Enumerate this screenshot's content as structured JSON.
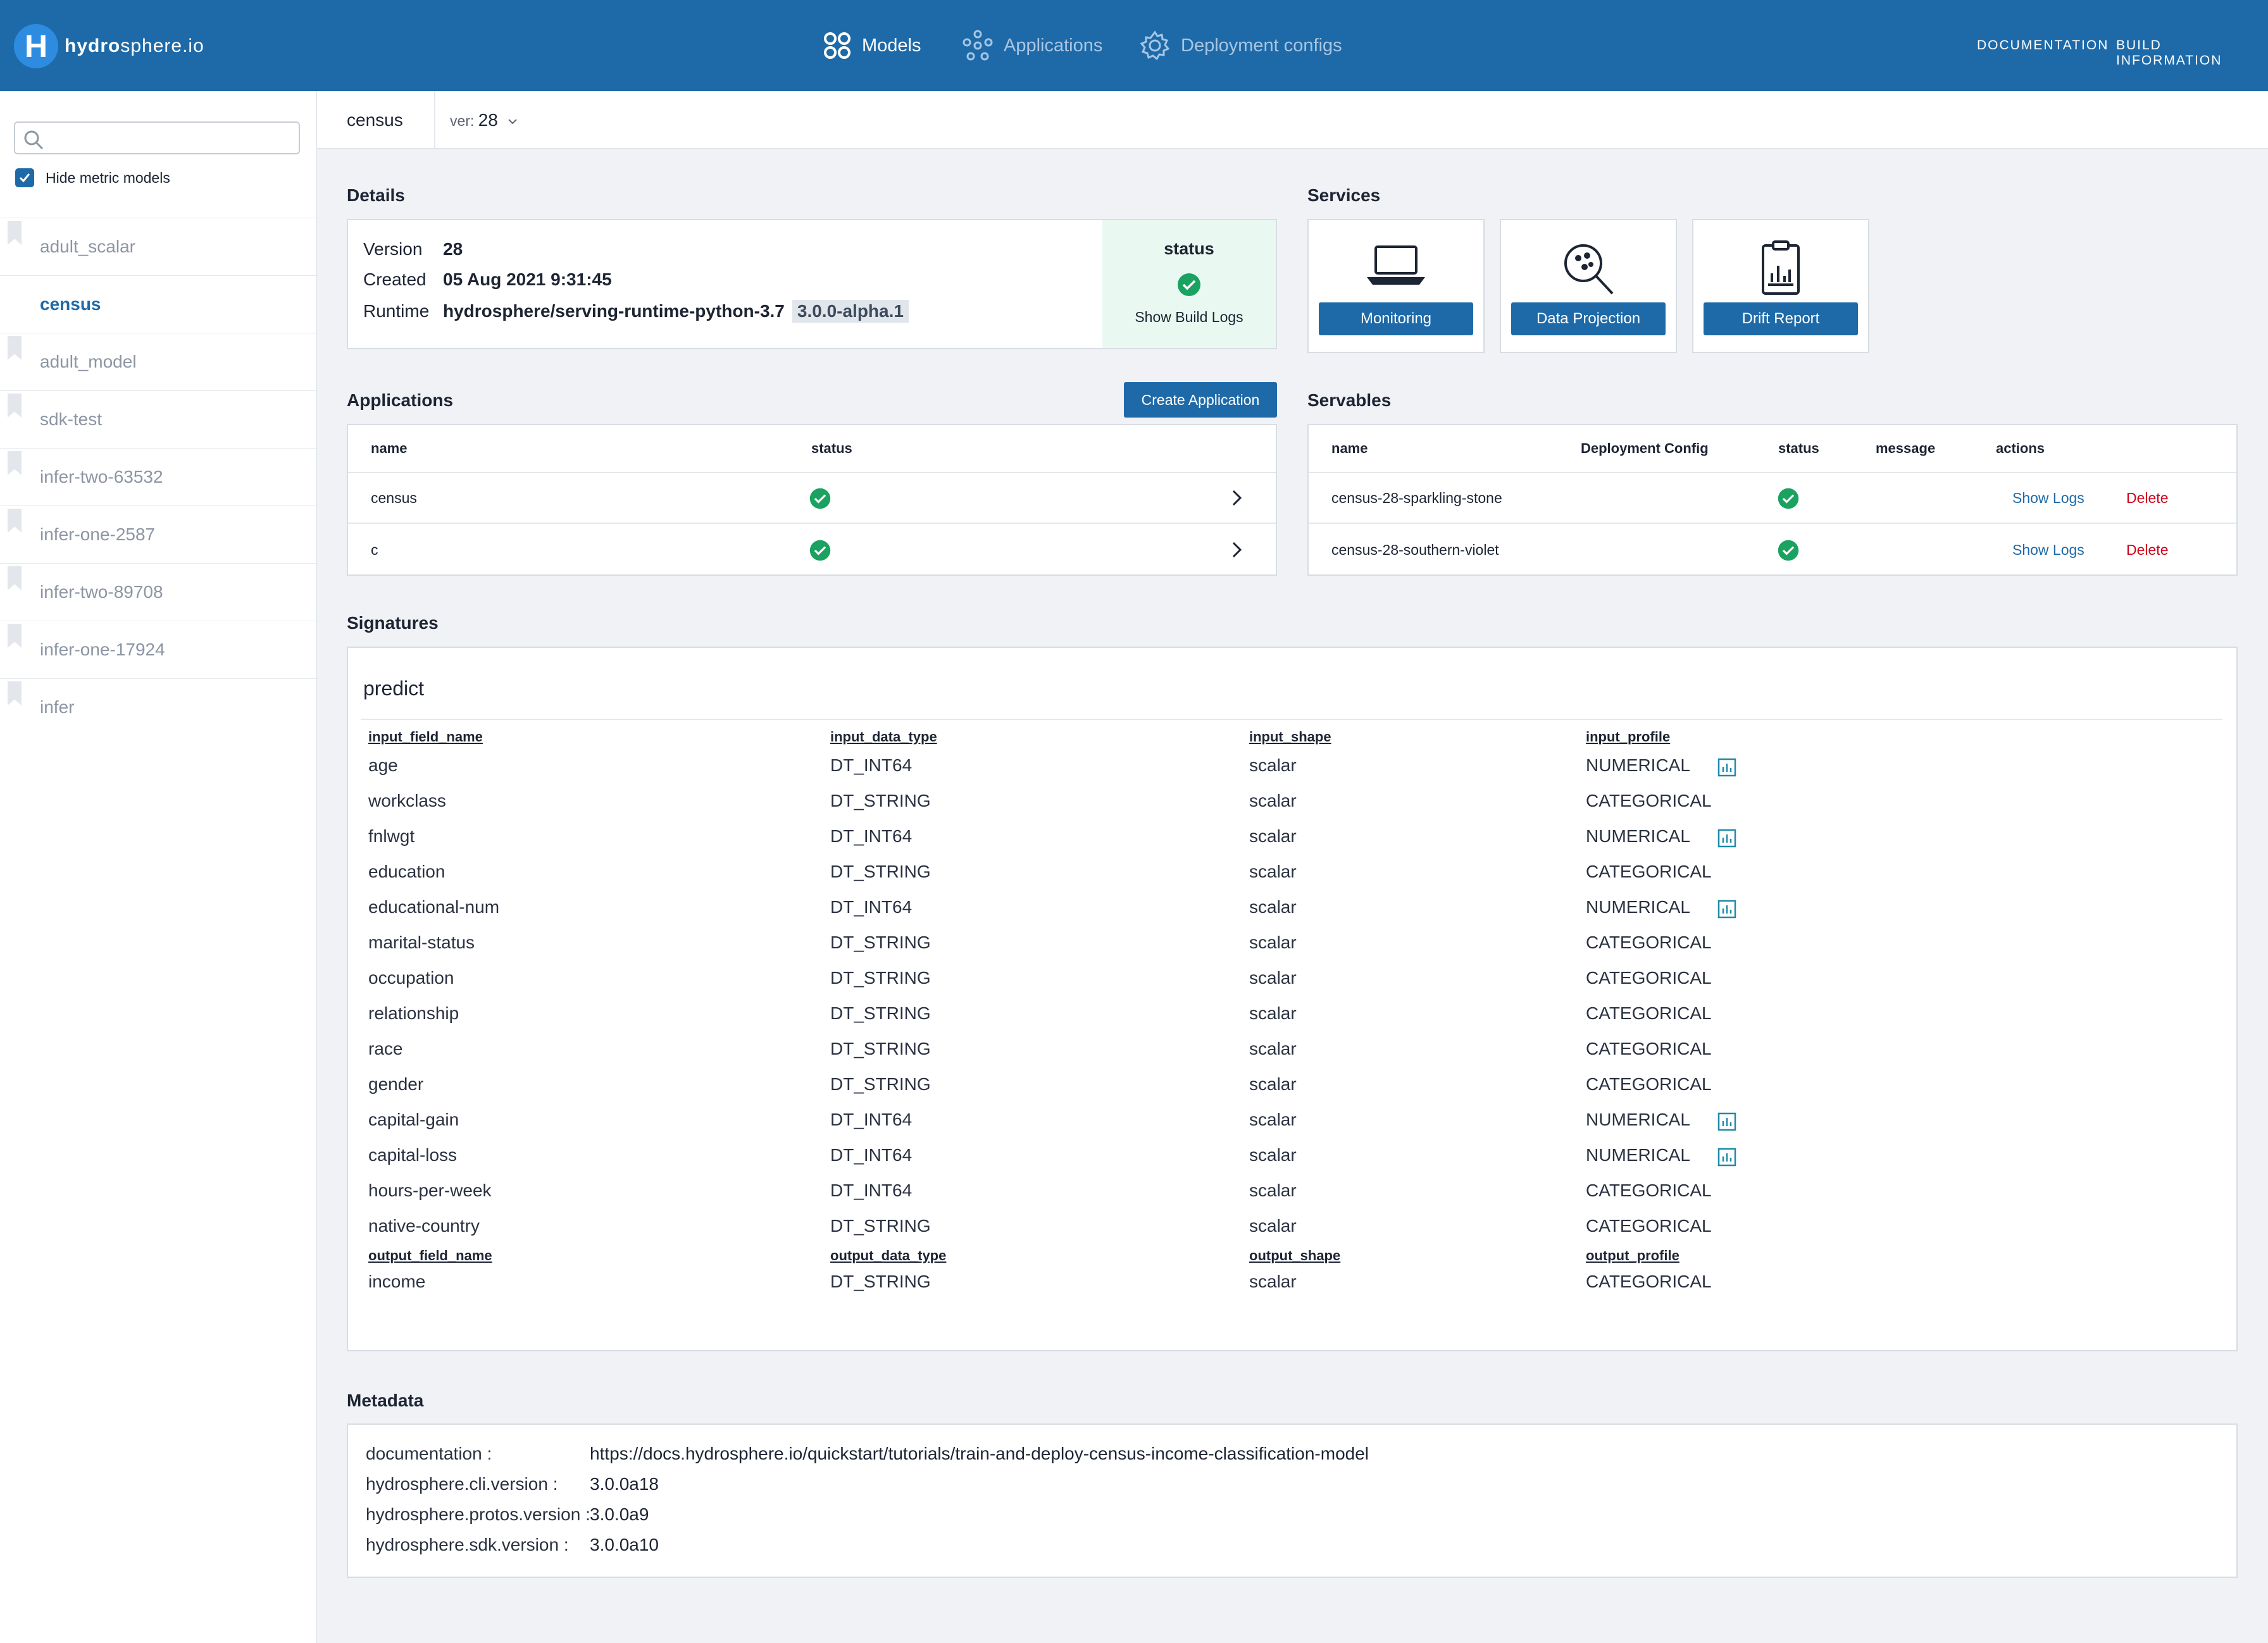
{
  "brand": {
    "name_bold": "hydro",
    "name_rest": "sphere.io",
    "mark": "H"
  },
  "nav": {
    "models": "Models",
    "applications": "Applications",
    "deployment_configs": "Deployment configs",
    "documentation": "DOCUMENTATION",
    "build_information": "BUILD INFORMATION"
  },
  "sidebar": {
    "search_placeholder": "",
    "hide_metric_label": "Hide metric models",
    "hide_metric_checked": true,
    "models": [
      "adult_scalar",
      "census",
      "adult_model",
      "sdk-test",
      "infer-two-63532",
      "infer-one-2587",
      "infer-two-89708",
      "infer-one-17924",
      "infer"
    ],
    "active_model": "census"
  },
  "header": {
    "model_name": "census",
    "ver_label": "ver:",
    "ver_value": "28"
  },
  "details": {
    "title": "Details",
    "version_label": "Version",
    "version_value": "28",
    "created_label": "Created",
    "created_value": "05 Aug 2021 9:31:45",
    "runtime_label": "Runtime",
    "runtime_value": "hydrosphere/serving-runtime-python-3.7",
    "runtime_tag": "3.0.0-alpha.1",
    "status_title": "status",
    "status_link": "Show Build Logs"
  },
  "services": {
    "title": "Services",
    "items": [
      "Monitoring",
      "Data Projection",
      "Drift Report"
    ]
  },
  "applications": {
    "title": "Applications",
    "create_button": "Create Application",
    "headers": [
      "name",
      "status"
    ],
    "rows": [
      {
        "name": "census",
        "status": "ok"
      },
      {
        "name": "c",
        "status": "ok"
      }
    ]
  },
  "servables": {
    "title": "Servables",
    "headers": [
      "name",
      "Deployment Config",
      "status",
      "message",
      "actions"
    ],
    "rows": [
      {
        "name": "census-28-sparkling-stone",
        "deployment_config": "",
        "status": "ok",
        "message": "",
        "show_logs": "Show Logs",
        "delete": "Delete"
      },
      {
        "name": "census-28-southern-violet",
        "deployment_config": "",
        "status": "ok",
        "message": "",
        "show_logs": "Show Logs",
        "delete": "Delete"
      }
    ]
  },
  "signatures": {
    "title": "Signatures",
    "name": "predict",
    "input_headers": [
      "input_field_name",
      "input_data_type",
      "input_shape",
      "input_profile"
    ],
    "inputs": [
      {
        "name": "age",
        "type": "DT_INT64",
        "shape": "scalar",
        "profile": "NUMERICAL",
        "chart": true
      },
      {
        "name": "workclass",
        "type": "DT_STRING",
        "shape": "scalar",
        "profile": "CATEGORICAL",
        "chart": false
      },
      {
        "name": "fnlwgt",
        "type": "DT_INT64",
        "shape": "scalar",
        "profile": "NUMERICAL",
        "chart": true
      },
      {
        "name": "education",
        "type": "DT_STRING",
        "shape": "scalar",
        "profile": "CATEGORICAL",
        "chart": false
      },
      {
        "name": "educational-num",
        "type": "DT_INT64",
        "shape": "scalar",
        "profile": "NUMERICAL",
        "chart": true
      },
      {
        "name": "marital-status",
        "type": "DT_STRING",
        "shape": "scalar",
        "profile": "CATEGORICAL",
        "chart": false
      },
      {
        "name": "occupation",
        "type": "DT_STRING",
        "shape": "scalar",
        "profile": "CATEGORICAL",
        "chart": false
      },
      {
        "name": "relationship",
        "type": "DT_STRING",
        "shape": "scalar",
        "profile": "CATEGORICAL",
        "chart": false
      },
      {
        "name": "race",
        "type": "DT_STRING",
        "shape": "scalar",
        "profile": "CATEGORICAL",
        "chart": false
      },
      {
        "name": "gender",
        "type": "DT_STRING",
        "shape": "scalar",
        "profile": "CATEGORICAL",
        "chart": false
      },
      {
        "name": "capital-gain",
        "type": "DT_INT64",
        "shape": "scalar",
        "profile": "NUMERICAL",
        "chart": true
      },
      {
        "name": "capital-loss",
        "type": "DT_INT64",
        "shape": "scalar",
        "profile": "NUMERICAL",
        "chart": true
      },
      {
        "name": "hours-per-week",
        "type": "DT_INT64",
        "shape": "scalar",
        "profile": "CATEGORICAL",
        "chart": false
      },
      {
        "name": "native-country",
        "type": "DT_STRING",
        "shape": "scalar",
        "profile": "CATEGORICAL",
        "chart": false
      }
    ],
    "output_headers": [
      "output_field_name",
      "output_data_type",
      "output_shape",
      "output_profile"
    ],
    "outputs": [
      {
        "name": "income",
        "type": "DT_STRING",
        "shape": "scalar",
        "profile": "CATEGORICAL",
        "chart": false
      }
    ]
  },
  "metadata": {
    "title": "Metadata",
    "entries": [
      {
        "key": "documentation :",
        "value": "https://docs.hydrosphere.io/quickstart/tutorials/train-and-deploy-census-income-classification-model"
      },
      {
        "key": "hydrosphere.cli.version :",
        "value": "3.0.0a18"
      },
      {
        "key": "hydrosphere.protos.version :",
        "value": "3.0.0a9"
      },
      {
        "key": "hydrosphere.sdk.version :",
        "value": "3.0.0a10"
      }
    ]
  },
  "colors": {
    "primary": "#1e6aa9",
    "success": "#1aa260",
    "danger": "#d0021b",
    "status_bg": "#e9f8f0"
  }
}
